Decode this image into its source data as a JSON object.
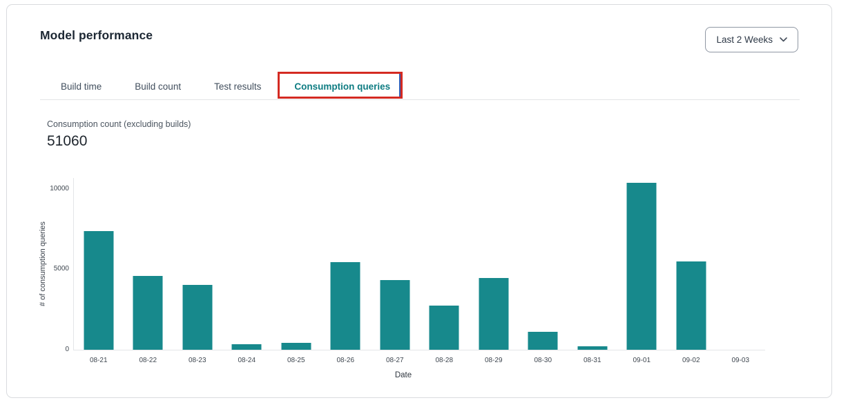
{
  "header": {
    "title": "Model performance",
    "range_selector": {
      "value": "Last 2 Weeks"
    }
  },
  "tabs": [
    {
      "label": "Build time",
      "active": false
    },
    {
      "label": "Build count",
      "active": false
    },
    {
      "label": "Test results",
      "active": false
    },
    {
      "label": "Consumption queries",
      "active": true
    }
  ],
  "annotation": {
    "type": "highlight-box",
    "target": "Consumption queries"
  },
  "stat": {
    "label": "Consumption count (excluding builds)",
    "value": "51060"
  },
  "chart_data": {
    "type": "bar",
    "categories": [
      "08-21",
      "08-22",
      "08-23",
      "08-24",
      "08-25",
      "08-26",
      "08-27",
      "08-28",
      "08-29",
      "08-30",
      "08-31",
      "09-01",
      "09-02",
      "09-03"
    ],
    "values": [
      7400,
      4600,
      4050,
      330,
      430,
      5470,
      4350,
      2730,
      4450,
      1130,
      220,
      10400,
      5500,
      0
    ],
    "title": "",
    "xlabel": "Date",
    "ylabel": "# of consumption queries",
    "yticks": [
      0,
      5000,
      10000
    ],
    "ylim": [
      0,
      10684
    ],
    "grid": false,
    "legend": false
  },
  "colors": {
    "bar": "#17898c",
    "active_tab": "#0e7c82",
    "annotation_red": "#d42a22",
    "annotation_blue": "#2f5bb5"
  }
}
